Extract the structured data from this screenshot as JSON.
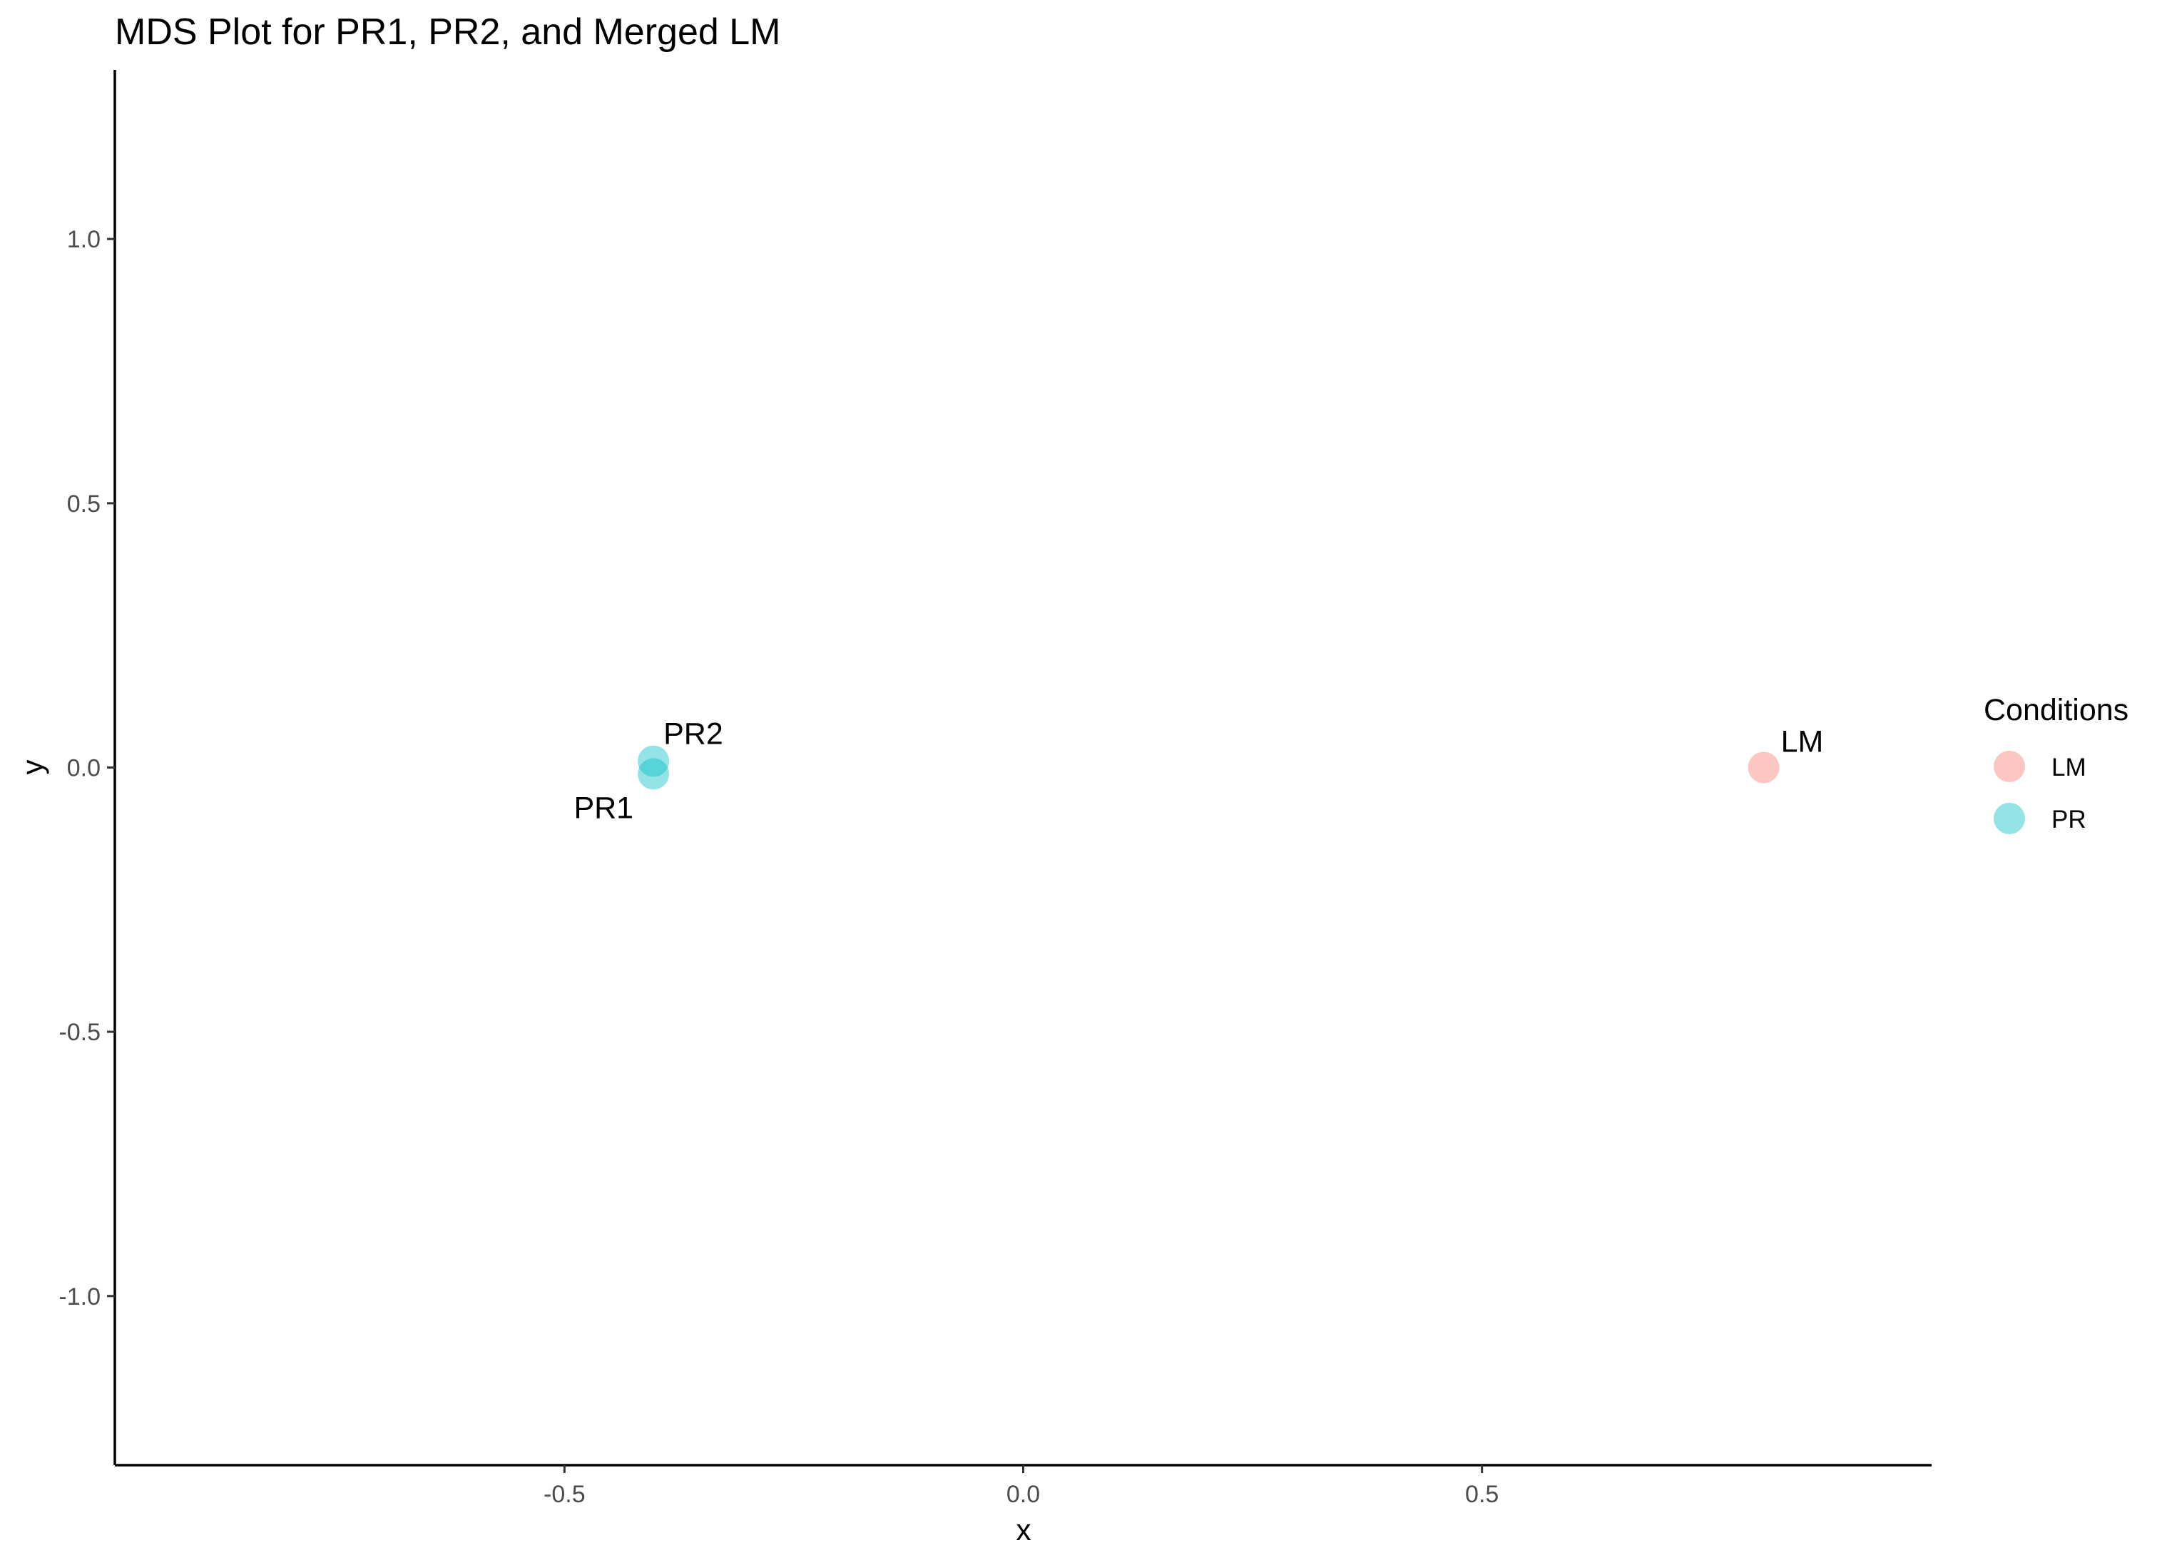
{
  "chart_data": {
    "type": "scatter",
    "title": "MDS Plot for PR1, PR2, and Merged LM",
    "xlabel": "x",
    "ylabel": "y",
    "xlim": [
      -0.99,
      0.99
    ],
    "ylim": [
      -1.32,
      1.32
    ],
    "x_ticks": [
      -0.5,
      0.0,
      0.5
    ],
    "x_tick_labels": [
      "-0.5",
      "0.0",
      "0.5"
    ],
    "y_ticks": [
      -1.0,
      -0.5,
      0.0,
      0.5,
      1.0
    ],
    "y_tick_labels": [
      "-1.0",
      "-0.5",
      "0.0",
      "0.5",
      "1.0"
    ],
    "grid": false,
    "legend": {
      "title": "Conditions",
      "position": "right",
      "entries": [
        {
          "label": "LM",
          "color": "#F8766D"
        },
        {
          "label": "PR",
          "color": "#00BFC4"
        }
      ]
    },
    "series": [
      {
        "name": "LM",
        "color": "#F8766D",
        "points": [
          {
            "label": "LM",
            "x": 0.807,
            "y": 0.0
          }
        ]
      },
      {
        "name": "PR",
        "color": "#00BFC4",
        "points": [
          {
            "label": "PR1",
            "x": -0.403,
            "y": -0.012
          },
          {
            "label": "PR2",
            "x": -0.403,
            "y": 0.012
          }
        ]
      }
    ]
  }
}
